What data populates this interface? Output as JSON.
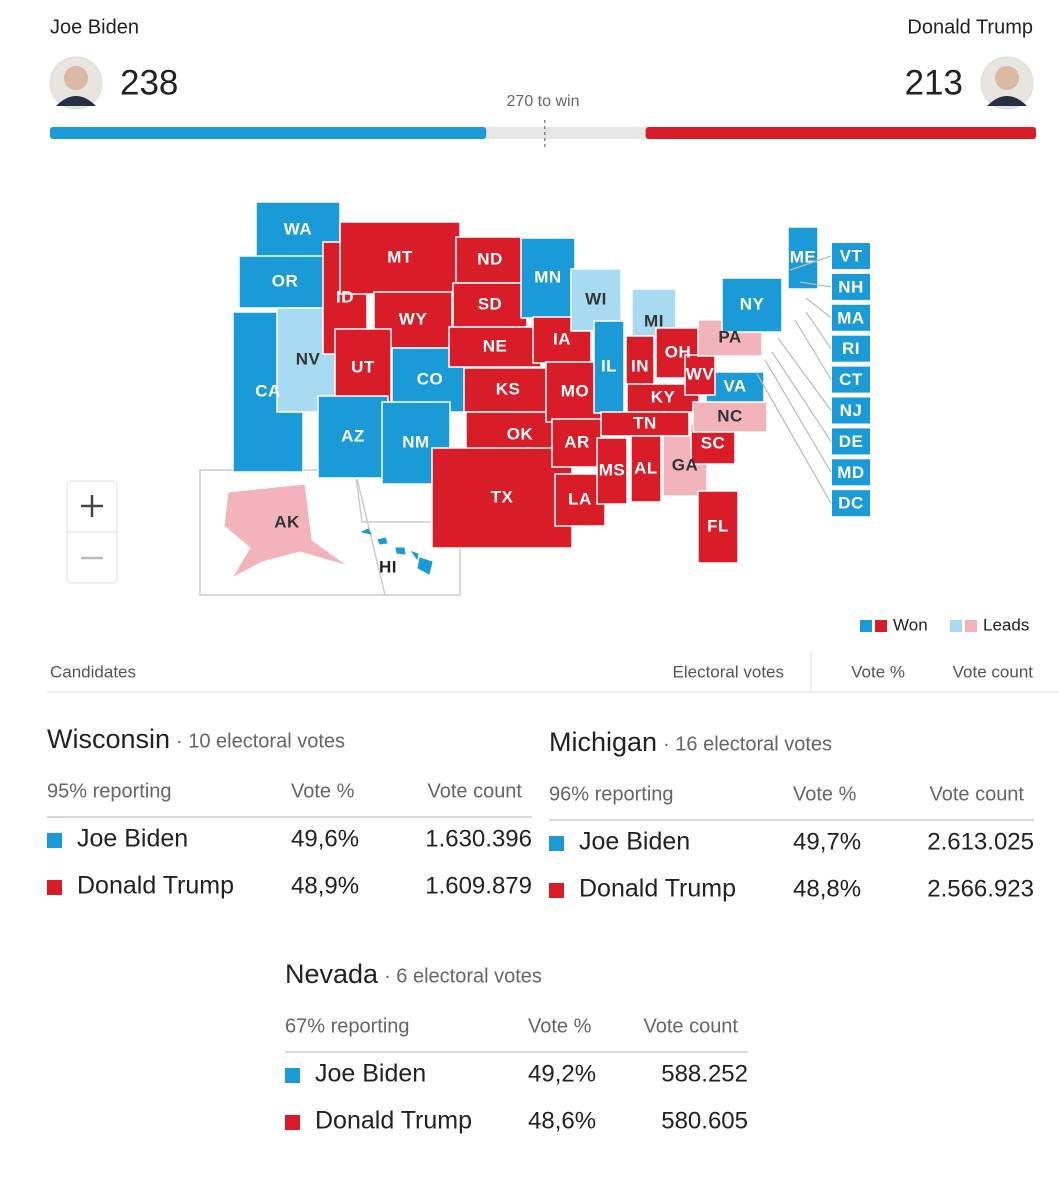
{
  "candidates": [
    {
      "name": "Joe Biden",
      "electoral_votes": 238,
      "color": "#1a9bd7"
    },
    {
      "name": "Donald Trump",
      "electoral_votes": 213,
      "color": "#d81c28"
    }
  ],
  "threshold_label": "270 to win",
  "map": {
    "states": [
      {
        "abbr": "WA",
        "candidate": 0,
        "legend": 0
      },
      {
        "abbr": "OR",
        "candidate": 0,
        "legend": 0
      },
      {
        "abbr": "CA",
        "candidate": 0,
        "legend": 0
      },
      {
        "abbr": "NV",
        "candidate": 0,
        "legend": 1
      },
      {
        "abbr": "ID",
        "candidate": 1,
        "legend": 0
      },
      {
        "abbr": "MT",
        "candidate": 1,
        "legend": 0
      },
      {
        "abbr": "WY",
        "candidate": 1,
        "legend": 0
      },
      {
        "abbr": "UT",
        "candidate": 1,
        "legend": 0
      },
      {
        "abbr": "CO",
        "candidate": 0,
        "legend": 0
      },
      {
        "abbr": "AZ",
        "candidate": 0,
        "legend": 0
      },
      {
        "abbr": "NM",
        "candidate": 0,
        "legend": 0
      },
      {
        "abbr": "ND",
        "candidate": 1,
        "legend": 0
      },
      {
        "abbr": "SD",
        "candidate": 1,
        "legend": 0
      },
      {
        "abbr": "NE",
        "candidate": 1,
        "legend": 0
      },
      {
        "abbr": "KS",
        "candidate": 1,
        "legend": 0
      },
      {
        "abbr": "OK",
        "candidate": 1,
        "legend": 0
      },
      {
        "abbr": "TX",
        "candidate": 1,
        "legend": 0
      },
      {
        "abbr": "MN",
        "candidate": 0,
        "legend": 0
      },
      {
        "abbr": "IA",
        "candidate": 1,
        "legend": 0
      },
      {
        "abbr": "MO",
        "candidate": 1,
        "legend": 0
      },
      {
        "abbr": "AR",
        "candidate": 1,
        "legend": 0
      },
      {
        "abbr": "LA",
        "candidate": 1,
        "legend": 0
      },
      {
        "abbr": "WI",
        "candidate": 0,
        "legend": 1
      },
      {
        "abbr": "MI",
        "candidate": 0,
        "legend": 1
      },
      {
        "abbr": "IL",
        "candidate": 0,
        "legend": 0
      },
      {
        "abbr": "IN",
        "candidate": 1,
        "legend": 0
      },
      {
        "abbr": "OH",
        "candidate": 1,
        "legend": 0
      },
      {
        "abbr": "KY",
        "candidate": 1,
        "legend": 0
      },
      {
        "abbr": "TN",
        "candidate": 1,
        "legend": 0
      },
      {
        "abbr": "MS",
        "candidate": 1,
        "legend": 0
      },
      {
        "abbr": "AL",
        "candidate": 1,
        "legend": 0
      },
      {
        "abbr": "GA",
        "candidate": 1,
        "legend": 1
      },
      {
        "abbr": "FL",
        "candidate": 1,
        "legend": 0
      },
      {
        "abbr": "SC",
        "candidate": 1,
        "legend": 0
      },
      {
        "abbr": "NC",
        "candidate": 1,
        "legend": 1
      },
      {
        "abbr": "VA",
        "candidate": 0,
        "legend": 0
      },
      {
        "abbr": "WV",
        "candidate": 1,
        "legend": 0
      },
      {
        "abbr": "PA",
        "candidate": 1,
        "legend": 1
      },
      {
        "abbr": "NY",
        "candidate": 0,
        "legend": 0
      },
      {
        "abbr": "ME",
        "candidate": 0,
        "legend": 0
      },
      {
        "abbr": "VT",
        "candidate": 0,
        "legend": 0
      },
      {
        "abbr": "NH",
        "candidate": 0,
        "legend": 0
      },
      {
        "abbr": "MA",
        "candidate": 0,
        "legend": 0
      },
      {
        "abbr": "RI",
        "candidate": 0,
        "legend": 0
      },
      {
        "abbr": "CT",
        "candidate": 0,
        "legend": 0
      },
      {
        "abbr": "NJ",
        "candidate": 0,
        "legend": 0
      },
      {
        "abbr": "DE",
        "candidate": 0,
        "legend": 0
      },
      {
        "abbr": "MD",
        "candidate": 0,
        "legend": 0
      },
      {
        "abbr": "DC",
        "candidate": 0,
        "legend": 0
      },
      {
        "abbr": "AK",
        "candidate": 1,
        "legend": 1
      },
      {
        "abbr": "HI",
        "candidate": 0,
        "legend": 0
      }
    ]
  },
  "legend": [
    {
      "label": "Won",
      "colors": [
        "#1a9bd7",
        "#d81c28"
      ],
      "text_color": "#ffffff"
    },
    {
      "label": "Leads",
      "colors": [
        "#a8daf2",
        "#f3b3bb"
      ],
      "text_color": "#333333"
    }
  ],
  "table_header": [
    "Candidates",
    "Electoral votes",
    "Vote %",
    "Vote count"
  ],
  "races": [
    {
      "state": "Wisconsin",
      "electoral": "· 10 electoral votes",
      "reporting": "95% reporting",
      "columns": [
        "Vote %",
        "Vote count"
      ],
      "rows": [
        {
          "name": "Joe Biden",
          "pct": "49,6%",
          "count": "1.630.396",
          "color": "#1a9bd7"
        },
        {
          "name": "Donald Trump",
          "pct": "48,9%",
          "count": "1.609.879",
          "color": "#d81c28"
        }
      ]
    },
    {
      "state": "Michigan",
      "electoral": "· 16 electoral votes",
      "reporting": "96% reporting",
      "columns": [
        "Vote %",
        "Vote count"
      ],
      "rows": [
        {
          "name": "Joe Biden",
          "pct": "49,7%",
          "count": "2.613.025",
          "color": "#1a9bd7"
        },
        {
          "name": "Donald Trump",
          "pct": "48,8%",
          "count": "2.566.923",
          "color": "#d81c28"
        }
      ]
    },
    {
      "state": "Nevada",
      "electoral": "· 6 electoral votes",
      "reporting": "67% reporting",
      "columns": [
        "Vote %",
        "Vote count"
      ],
      "rows": [
        {
          "name": "Joe Biden",
          "pct": "49,2%",
          "count": "588.252",
          "color": "#1a9bd7"
        },
        {
          "name": "Donald Trump",
          "pct": "48,6%",
          "count": "580.605",
          "color": "#d81c28"
        }
      ]
    }
  ]
}
